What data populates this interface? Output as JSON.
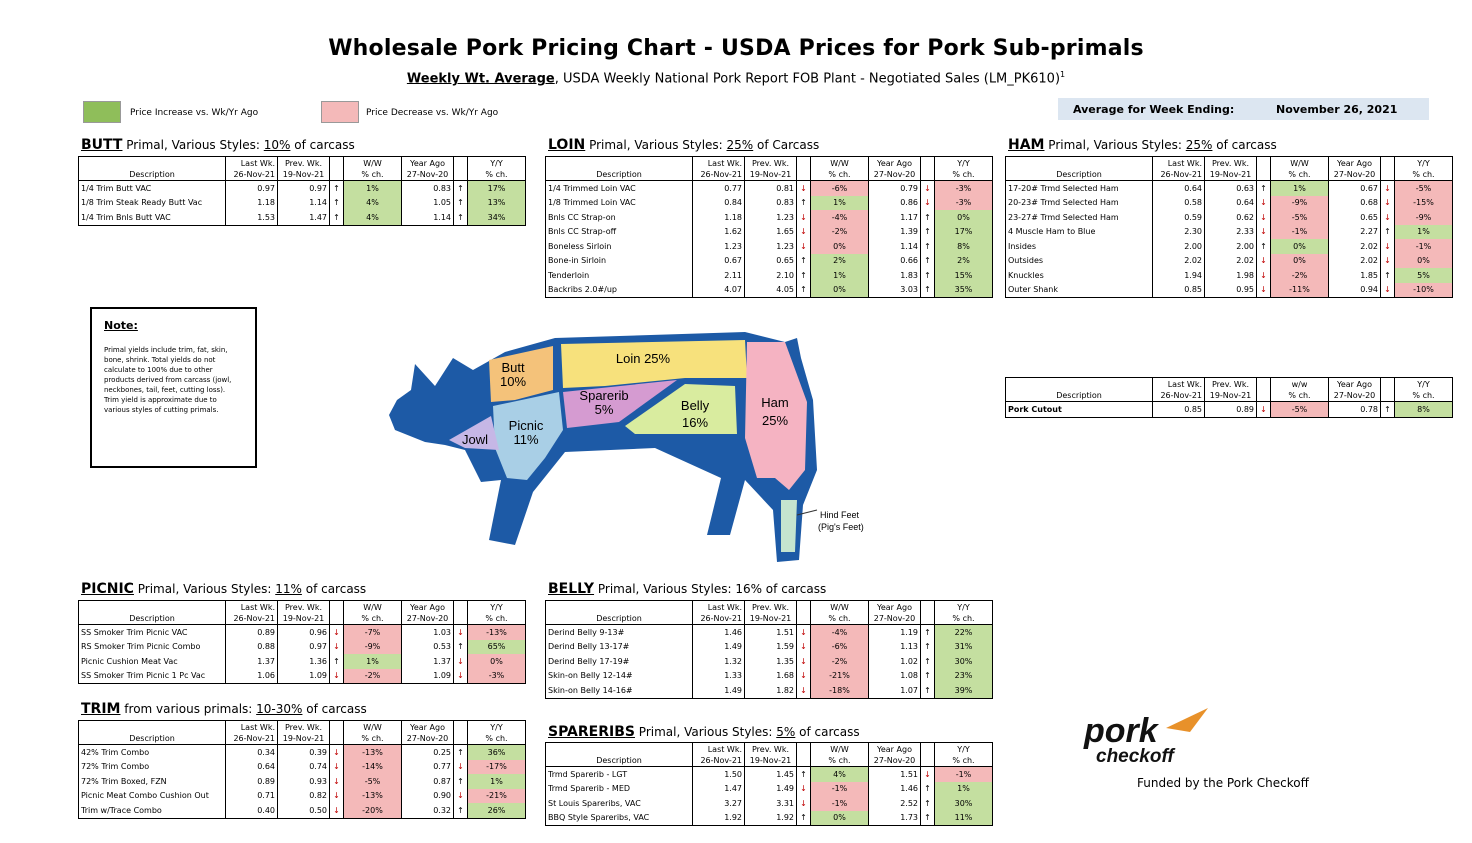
{
  "title": "Wholesale Pork Pricing Chart - USDA Prices for Pork Sub-primals",
  "subtitle": {
    "bold": "Weekly Wt. Average",
    "rest": ", USDA Weekly National Pork Report FOB Plant - Negotiated Sales (LM_PK610)",
    "sup": "1"
  },
  "legend": {
    "increase": "Price Increase vs. Wk/Yr Ago",
    "decrease": "Price Decrease vs. Wk/Yr Ago",
    "increase_color": "#8fbe5a",
    "decrease_color": "#f4b9b9"
  },
  "week": {
    "label": "Average for Week Ending:",
    "value": "November 26, 2021"
  },
  "col_headers": {
    "desc": "Description",
    "last_wk": "Last Wk.",
    "last_date": "26-Nov-21",
    "prev_wk": "Prev. Wk.",
    "prev_date": "19-Nov-21",
    "ww": "W/W",
    "ww_lc": "w/w",
    "pct": "% ch.",
    "yago": "Year Ago",
    "yago_date": "27-Nov-20",
    "yy": "Y/Y"
  },
  "sections": {
    "butt": {
      "name": "BUTT",
      "pre": " Primal, Various Styles: ",
      "pct": "10%",
      "post": " of carcass",
      "rows": [
        [
          "1/4 Trim Butt VAC",
          "0.97",
          "0.97",
          "up",
          "1%",
          "0.83",
          "up",
          "17%"
        ],
        [
          "1/8 Trim Steak Ready Butt Vac",
          "1.18",
          "1.14",
          "up",
          "4%",
          "1.05",
          "up",
          "13%"
        ],
        [
          "1/4 Trim Bnls Butt VAC",
          "1.53",
          "1.47",
          "up",
          "4%",
          "1.14",
          "up",
          "34%"
        ]
      ]
    },
    "loin": {
      "name": "LOIN",
      "pre": " Primal, Various Styles: ",
      "pct": "25%",
      "post": " of Carcass",
      "rows": [
        [
          "1/4 Trimmed Loin VAC",
          "0.77",
          "0.81",
          "dn",
          "-6%",
          "0.79",
          "dn",
          "-3%"
        ],
        [
          "1/8 Trimmed Loin VAC",
          "0.84",
          "0.83",
          "up",
          "1%",
          "0.86",
          "dn",
          "-3%"
        ],
        [
          "Bnls CC Strap-on",
          "1.18",
          "1.23",
          "dn",
          "-4%",
          "1.17",
          "up",
          "0%"
        ],
        [
          "Bnls CC Strap-off",
          "1.62",
          "1.65",
          "dn",
          "-2%",
          "1.39",
          "up",
          "17%"
        ],
        [
          "Boneless Sirloin",
          "1.23",
          "1.23",
          "dn",
          "0%",
          "1.14",
          "up",
          "8%"
        ],
        [
          "Bone-in Sirloin",
          "0.67",
          "0.65",
          "up",
          "2%",
          "0.66",
          "up",
          "2%"
        ],
        [
          "Tenderloin",
          "2.11",
          "2.10",
          "up",
          "1%",
          "1.83",
          "up",
          "15%"
        ],
        [
          "Backribs 2.0#/up",
          "4.07",
          "4.05",
          "up",
          "0%",
          "3.03",
          "up",
          "35%"
        ]
      ]
    },
    "ham": {
      "name": "HAM",
      "pre": " Primal, Various Styles: ",
      "pct": "25%",
      "post": " of carcass",
      "rows": [
        [
          "17-20# Trmd Selected Ham",
          "0.64",
          "0.63",
          "up",
          "1%",
          "0.67",
          "dn",
          "-5%"
        ],
        [
          "20-23# Trmd Selected Ham",
          "0.58",
          "0.64",
          "dn",
          "-9%",
          "0.68",
          "dn",
          "-15%"
        ],
        [
          "23-27# Trmd Selected Ham",
          "0.59",
          "0.62",
          "dn",
          "-5%",
          "0.65",
          "dn",
          "-9%"
        ],
        [
          "4 Muscle Ham to Blue",
          "2.30",
          "2.33",
          "dn",
          "-1%",
          "2.27",
          "up",
          "1%"
        ],
        [
          "Insides",
          "2.00",
          "2.00",
          "up",
          "0%",
          "2.02",
          "dn",
          "-1%"
        ],
        [
          "Outsides",
          "2.02",
          "2.02",
          "dn",
          "0%",
          "2.02",
          "dn",
          "0%"
        ],
        [
          "Knuckles",
          "1.94",
          "1.98",
          "dn",
          "-2%",
          "1.85",
          "up",
          "5%"
        ],
        [
          "Outer Shank",
          "0.85",
          "0.95",
          "dn",
          "-11%",
          "0.94",
          "dn",
          "-10%"
        ]
      ]
    },
    "cutout": {
      "rows": [
        [
          "Pork Cutout",
          "0.85",
          "0.89",
          "dn",
          "-5%",
          "0.78",
          "up",
          "8%"
        ]
      ]
    },
    "picnic": {
      "name": "PICNIC",
      "pre": " Primal, Various Styles: ",
      "pct": "11%",
      "post": " of carcass",
      "rows": [
        [
          "SS Smoker Trim Picnic VAC",
          "0.89",
          "0.96",
          "dn",
          "-7%",
          "1.03",
          "dn",
          "-13%"
        ],
        [
          "RS Smoker Trim Picnic Combo",
          "0.88",
          "0.97",
          "dn",
          "-9%",
          "0.53",
          "up",
          "65%"
        ],
        [
          "Picnic Cushion Meat Vac",
          "1.37",
          "1.36",
          "up",
          "1%",
          "1.37",
          "dn",
          "0%"
        ],
        [
          "SS Smoker Trim Picnic 1 Pc Vac",
          "1.06",
          "1.09",
          "dn",
          "-2%",
          "1.09",
          "dn",
          "-3%"
        ]
      ]
    },
    "belly": {
      "name": "BELLY",
      "pre": " Primal, Various Styles: 16% of carcass",
      "pct": "",
      "post": "",
      "rows": [
        [
          "Derind Belly 9-13#",
          "1.46",
          "1.51",
          "dn",
          "-4%",
          "1.19",
          "up",
          "22%"
        ],
        [
          "Derind Belly 13-17#",
          "1.49",
          "1.59",
          "dn",
          "-6%",
          "1.13",
          "up",
          "31%"
        ],
        [
          "Derind Belly 17-19#",
          "1.32",
          "1.35",
          "dn",
          "-2%",
          "1.02",
          "up",
          "30%"
        ],
        [
          "Skin-on Belly 12-14#",
          "1.33",
          "1.68",
          "dn",
          "-21%",
          "1.08",
          "up",
          "23%"
        ],
        [
          "Skin-on Belly 14-16#",
          "1.49",
          "1.82",
          "dn",
          "-18%",
          "1.07",
          "up",
          "39%"
        ]
      ]
    },
    "trim": {
      "name": "TRIM",
      "pre": " from various primals: ",
      "pct": "10-30%",
      "post": " of carcass",
      "rows": [
        [
          "42% Trim Combo",
          "0.34",
          "0.39",
          "dn",
          "-13%",
          "0.25",
          "up",
          "36%"
        ],
        [
          "72% Trim Combo",
          "0.64",
          "0.74",
          "dn",
          "-14%",
          "0.77",
          "dn",
          "-17%"
        ],
        [
          "72% Trim Boxed, FZN",
          "0.89",
          "0.93",
          "dn",
          "-5%",
          "0.87",
          "up",
          "1%"
        ],
        [
          "Picnic Meat Combo Cushion Out",
          "0.71",
          "0.82",
          "dn",
          "-13%",
          "0.90",
          "dn",
          "-21%"
        ],
        [
          "Trim w/Trace Combo",
          "0.40",
          "0.50",
          "dn",
          "-20%",
          "0.32",
          "up",
          "26%"
        ]
      ]
    },
    "spareribs": {
      "name": "SPARERIBS",
      "pre": " Primal, Various Styles: ",
      "pct": "5%",
      "post": " of carcass",
      "rows": [
        [
          "Trmd Sparerib - LGT",
          "1.50",
          "1.45",
          "up",
          "4%",
          "1.51",
          "dn",
          "-1%"
        ],
        [
          "Trmd Sparerib - MED",
          "1.47",
          "1.49",
          "dn",
          "-1%",
          "1.46",
          "up",
          "1%"
        ],
        [
          "St Louis Spareribs, VAC",
          "3.27",
          "3.31",
          "dn",
          "-1%",
          "2.52",
          "up",
          "30%"
        ],
        [
          "BBQ Style Spareribs, VAC",
          "1.92",
          "1.92",
          "up",
          "0%",
          "1.73",
          "up",
          "11%"
        ]
      ]
    }
  },
  "note": {
    "title": "Note:",
    "body": "Primal yields include trim, fat, skin, bone, shrink. Total yields do not calculate to 100% due to other products derived from carcass (jowl, neckbones, tail, feet, cutting loss). Trim yield is approximate due to various styles of cutting primals."
  },
  "pig": {
    "butt": "Butt",
    "butt_pct": "10%",
    "loin": "Loin 25%",
    "sparerib": "Sparerib",
    "sparerib_pct": "5%",
    "belly": "Belly",
    "belly_pct": "16%",
    "ham": "Ham",
    "ham_pct": "25%",
    "picnic": "Picnic",
    "picnic_pct": "11%",
    "jowl": "Jowl",
    "hind_feet": "Hind Feet",
    "hind_feet2": "(Pig's Feet)"
  },
  "logo": {
    "line1": "pork",
    "line2": "checkoff"
  },
  "funded": "Funded by the Pork Checkoff"
}
